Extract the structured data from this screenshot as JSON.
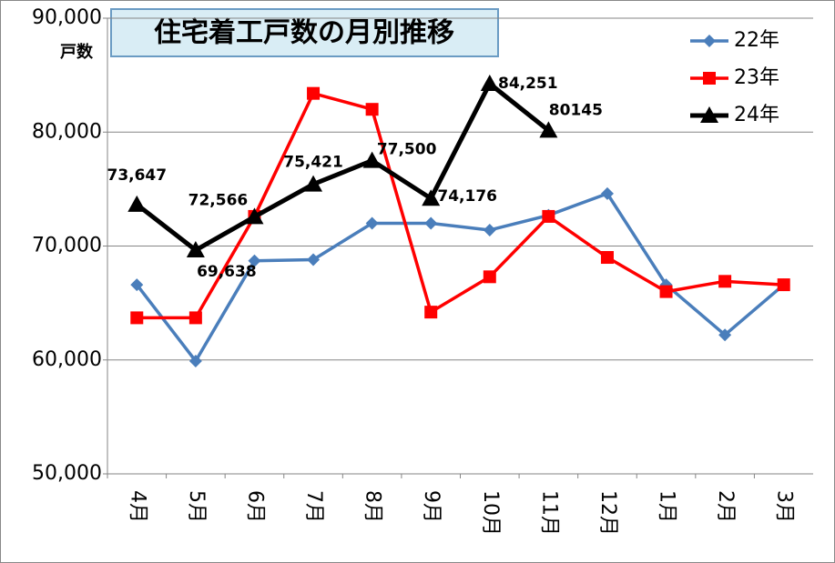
{
  "chart_data": {
    "type": "line",
    "title": "住宅着工戸数の月別推移",
    "y_label": "戸数",
    "categories": [
      "4月",
      "5月",
      "6月",
      "7月",
      "8月",
      "9月",
      "10月",
      "11月",
      "12月",
      "1月",
      "2月",
      "3月"
    ],
    "series": [
      {
        "name": "22年",
        "color": "#4a7ebb",
        "marker": "diamond",
        "values": [
          66600,
          59900,
          68700,
          68800,
          72000,
          72000,
          71400,
          72700,
          74600,
          66600,
          62200,
          66600
        ]
      },
      {
        "name": "23年",
        "color": "#ff0000",
        "marker": "square",
        "values": [
          63700,
          63700,
          72600,
          83400,
          82000,
          64200,
          67300,
          72600,
          69000,
          66000,
          66900,
          66600
        ]
      },
      {
        "name": "24年",
        "color": "#000000",
        "marker": "triangle",
        "values": [
          73647,
          69638,
          72566,
          75421,
          77500,
          74176,
          84251,
          80145,
          null,
          null,
          null,
          null
        ],
        "value_labels": [
          "73,647",
          "69,638",
          "72,566",
          "75,421",
          "77,500",
          "74,176",
          "84,251",
          "80145",
          null,
          null,
          null,
          null
        ]
      }
    ],
    "ylim": [
      50000,
      90000
    ],
    "yticks": [
      {
        "value": 50000,
        "label": "50,000"
      },
      {
        "value": 60000,
        "label": "60,000"
      },
      {
        "value": 70000,
        "label": "70,000"
      },
      {
        "value": 80000,
        "label": "80,000"
      },
      {
        "value": 90000,
        "label": "90,000"
      }
    ],
    "grid": true,
    "legend": "top-right"
  }
}
